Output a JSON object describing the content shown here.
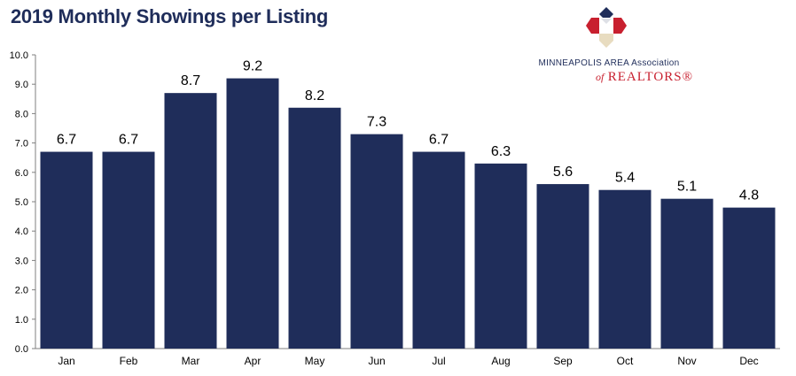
{
  "chart_data": {
    "type": "bar",
    "title": "2019 Monthly Showings per Listing",
    "categories": [
      "Jan",
      "Feb",
      "Mar",
      "Apr",
      "May",
      "Jun",
      "Jul",
      "Aug",
      "Sep",
      "Oct",
      "Nov",
      "Dec"
    ],
    "values": [
      6.7,
      6.7,
      8.7,
      9.2,
      8.2,
      7.3,
      6.7,
      6.3,
      5.6,
      5.4,
      5.1,
      4.8
    ],
    "data_labels": [
      "6.7",
      "6.7",
      "8.7",
      "9.2",
      "8.2",
      "7.3",
      "6.7",
      "6.3",
      "5.6",
      "5.4",
      "5.1",
      "4.8"
    ],
    "y_ticks": [
      "0.0",
      "1.0",
      "2.0",
      "3.0",
      "4.0",
      "5.0",
      "6.0",
      "7.0",
      "8.0",
      "9.0",
      "10.0"
    ],
    "ylim": [
      0,
      10
    ],
    "xlabel": "",
    "ylabel": "",
    "grid": false,
    "bar_color": "#1f2d5a"
  },
  "logo": {
    "line1": "MINNEAPOLIS AREA Association",
    "of": "of",
    "realtors": "REALTORS®",
    "icon": "map-house-logo-icon",
    "colors": {
      "red": "#c8202f",
      "navy": "#1f2d5a",
      "cream": "#e8dcc0"
    }
  }
}
